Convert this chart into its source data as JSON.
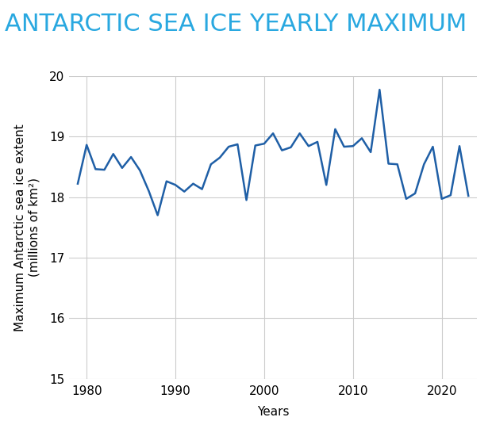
{
  "title": "ANTARCTIC SEA ICE YEARLY MAXIMUM",
  "xlabel": "Years",
  "ylabel": "Maximum Antarctic sea ice extent\n(millions of km²)",
  "title_color": "#29A8E0",
  "line_color": "#1F5FA6",
  "background_color": "#ffffff",
  "grid_color": "#cccccc",
  "years": [
    1979,
    1980,
    1981,
    1982,
    1983,
    1984,
    1985,
    1986,
    1987,
    1988,
    1989,
    1990,
    1991,
    1992,
    1993,
    1994,
    1995,
    1996,
    1997,
    1998,
    1999,
    2000,
    2001,
    2002,
    2003,
    2004,
    2005,
    2006,
    2007,
    2008,
    2009,
    2010,
    2011,
    2012,
    2013,
    2014,
    2015,
    2016,
    2017,
    2018,
    2019,
    2020,
    2021,
    2022,
    2023
  ],
  "values": [
    18.22,
    18.86,
    18.46,
    18.45,
    18.71,
    18.48,
    18.66,
    18.44,
    18.1,
    17.7,
    18.26,
    18.2,
    18.09,
    18.22,
    18.13,
    18.54,
    18.65,
    18.83,
    18.87,
    17.95,
    18.85,
    18.88,
    19.05,
    18.77,
    18.82,
    19.05,
    18.84,
    18.91,
    18.2,
    19.12,
    18.83,
    18.84,
    18.97,
    18.74,
    19.77,
    18.55,
    18.54,
    17.97,
    18.06,
    18.54,
    18.83,
    17.97,
    18.03,
    18.84,
    18.02
  ],
  "xlim": [
    1978,
    2024
  ],
  "ylim": [
    15,
    20
  ],
  "yticks": [
    15,
    16,
    17,
    18,
    19,
    20
  ],
  "xticks": [
    1980,
    1990,
    2000,
    2010,
    2020
  ],
  "line_width": 1.8,
  "title_fontsize": 22,
  "label_fontsize": 11,
  "tick_fontsize": 11
}
